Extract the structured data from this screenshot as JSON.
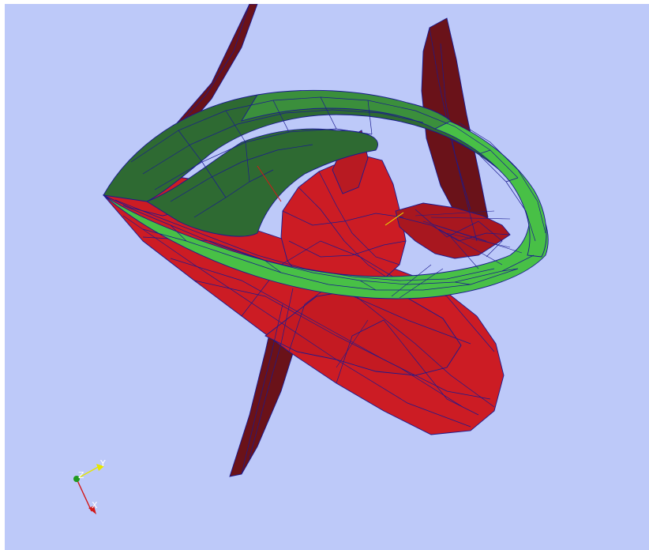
{
  "viewer": {
    "background_color": "#bdc9f9",
    "red_face_color": "#cc1c24",
    "dark_red_face_color": "#6a1219",
    "green_face_color": "#48c046",
    "dark_green_face_color": "#2e6a32",
    "wire_color": "#1a1a8f"
  },
  "axis_triad": {
    "x_label": "X",
    "y_label": "Y",
    "z_label": "Z",
    "x_color": "#d21818",
    "y_color": "#e6e600",
    "z_color": "#1f9a1f"
  }
}
